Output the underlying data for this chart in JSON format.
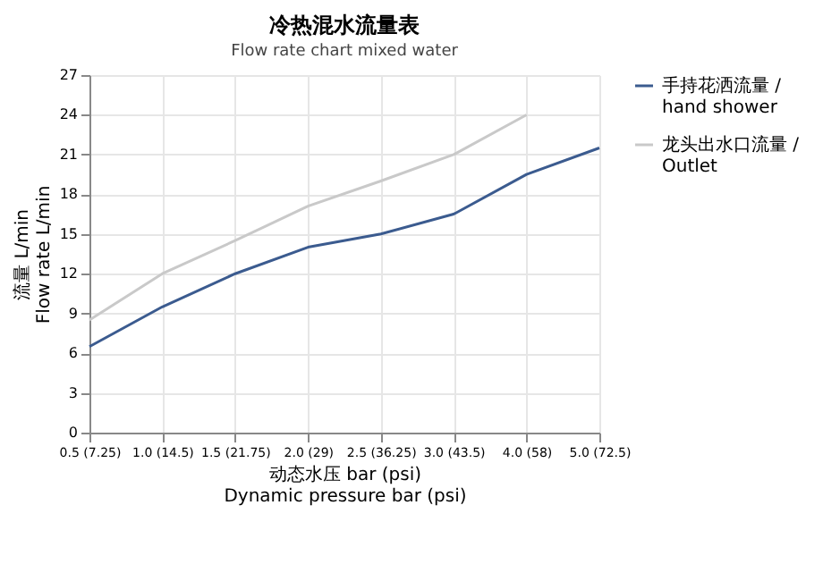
{
  "chart_data": {
    "type": "line",
    "title": "冷热混水流量表",
    "subtitle": "Flow rate chart mixed water",
    "xlabel": "动态水压  bar (psi)\nDynamic pressure bar (psi)",
    "ylabel": "流量 L/min\nFlow rate L/min",
    "categories": [
      "0.5 (7.25)",
      "1.0 (14.5)",
      "1.5 (21.75)",
      "2.0 (29)",
      "2.5 (36.25)",
      "3.0 (43.5)",
      "4.0 (58)",
      "5.0 (72.5)"
    ],
    "series": [
      {
        "name": "手持花洒流量 /\nhand shower",
        "color": "#3b5b8f",
        "values": [
          6.5,
          9.5,
          12,
          14,
          15,
          16.5,
          19.5,
          21.5
        ]
      },
      {
        "name": "龙头出水口流量 /\nOutlet",
        "color": "#c9c9c9",
        "values": [
          8.5,
          12,
          14.5,
          17.1,
          19,
          21,
          24,
          null
        ]
      }
    ],
    "ylim": [
      0,
      27
    ],
    "yticks": [
      0,
      3,
      6,
      9,
      12,
      15,
      18,
      21,
      24,
      27
    ],
    "grid": true,
    "legend": "right",
    "marker": "none",
    "line_style": "solid"
  }
}
